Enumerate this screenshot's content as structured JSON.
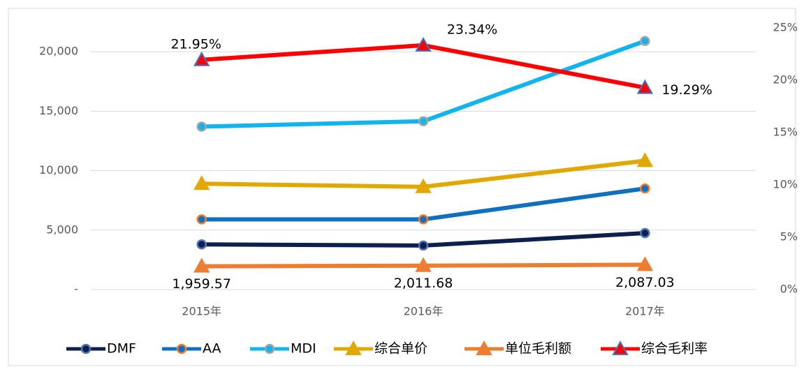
{
  "chart_data": {
    "type": "line",
    "categories": [
      "2015年",
      "2016年",
      "2017年"
    ],
    "ylim": [
      0,
      22000
    ],
    "yticks": [
      {
        "value": 0,
        "label": "-"
      },
      {
        "value": 5000,
        "label": "5,000"
      },
      {
        "value": 10000,
        "label": "10,000"
      },
      {
        "value": 15000,
        "label": "15,000"
      },
      {
        "value": 20000,
        "label": "20,000"
      }
    ],
    "y2lim": [
      0,
      25
    ],
    "y2ticks": [
      {
        "value": 0,
        "label": "0%"
      },
      {
        "value": 5,
        "label": "5%"
      },
      {
        "value": 10,
        "label": "10%"
      },
      {
        "value": 15,
        "label": "15%"
      },
      {
        "value": 20,
        "label": "20%"
      },
      {
        "value": 25,
        "label": "25%"
      }
    ],
    "grid": true,
    "legend": "bottom",
    "series": [
      {
        "name": "DMF",
        "color": "#0d1f4f",
        "marker": "circle",
        "marker_edge": "#4f72b8",
        "values": [
          3800,
          3700,
          4750
        ]
      },
      {
        "name": "AA",
        "color": "#0f70c0",
        "marker": "circle",
        "marker_edge": "#ed7d31",
        "values": [
          5900,
          5900,
          8500
        ]
      },
      {
        "name": "MDI",
        "color": "#12b4ee",
        "marker": "circle",
        "marker_edge": "#a5a5a5",
        "values": [
          13700,
          14150,
          20900
        ]
      },
      {
        "name": "综合单价",
        "color": "#e0a800",
        "marker": "triangle",
        "marker_edge": "#e0a800",
        "values": [
          8900,
          8640,
          10830
        ]
      },
      {
        "name": "单位毛利额",
        "color": "#ed7d31",
        "marker": "triangle",
        "marker_edge": "#ed7d31",
        "values": [
          1959.57,
          2011.68,
          2087.03
        ],
        "value_labels": [
          "1,959.57",
          "2,011.68",
          "2,087.03"
        ]
      },
      {
        "name": "综合毛利率",
        "color": "#ff0000",
        "marker": "triangle",
        "marker_edge": "#4472c4",
        "axis": "y2",
        "values": [
          21.95,
          23.34,
          19.29
        ],
        "value_labels": [
          "21.95%",
          "23.34%",
          "19.29%"
        ]
      }
    ]
  }
}
